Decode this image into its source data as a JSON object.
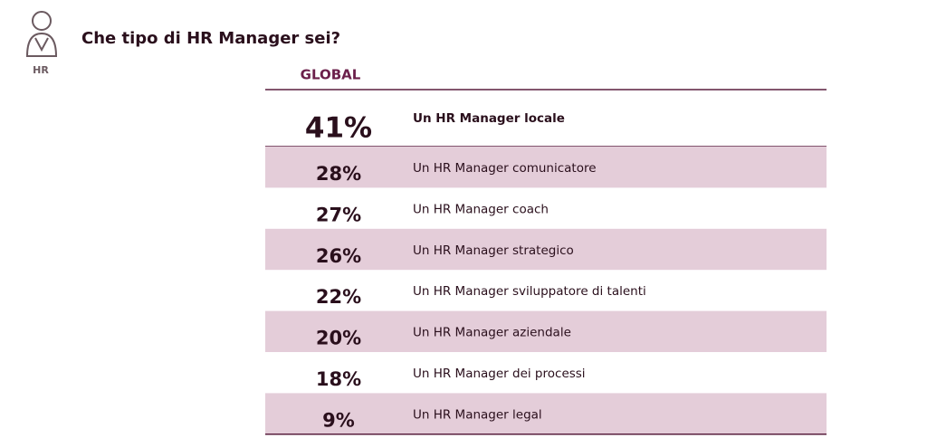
{
  "header": {
    "title": "Che tipo di HR Manager sei?",
    "icon_label": "HR"
  },
  "table": {
    "column_header": "GLOBAL",
    "rows": [
      {
        "value": "41%",
        "label": "Un HR Manager locale"
      },
      {
        "value": "28%",
        "label": "Un HR Manager comunicatore"
      },
      {
        "value": "27%",
        "label": "Un HR Manager coach"
      },
      {
        "value": "26%",
        "label": "Un HR Manager strategico"
      },
      {
        "value": "22%",
        "label": "Un HR Manager sviluppatore di talenti"
      },
      {
        "value": "20%",
        "label": "Un HR Manager aziendale"
      },
      {
        "value": "18%",
        "label": "Un HR Manager dei processi"
      },
      {
        "value": "9%",
        "label": "Un HR Manager legal"
      }
    ]
  }
}
